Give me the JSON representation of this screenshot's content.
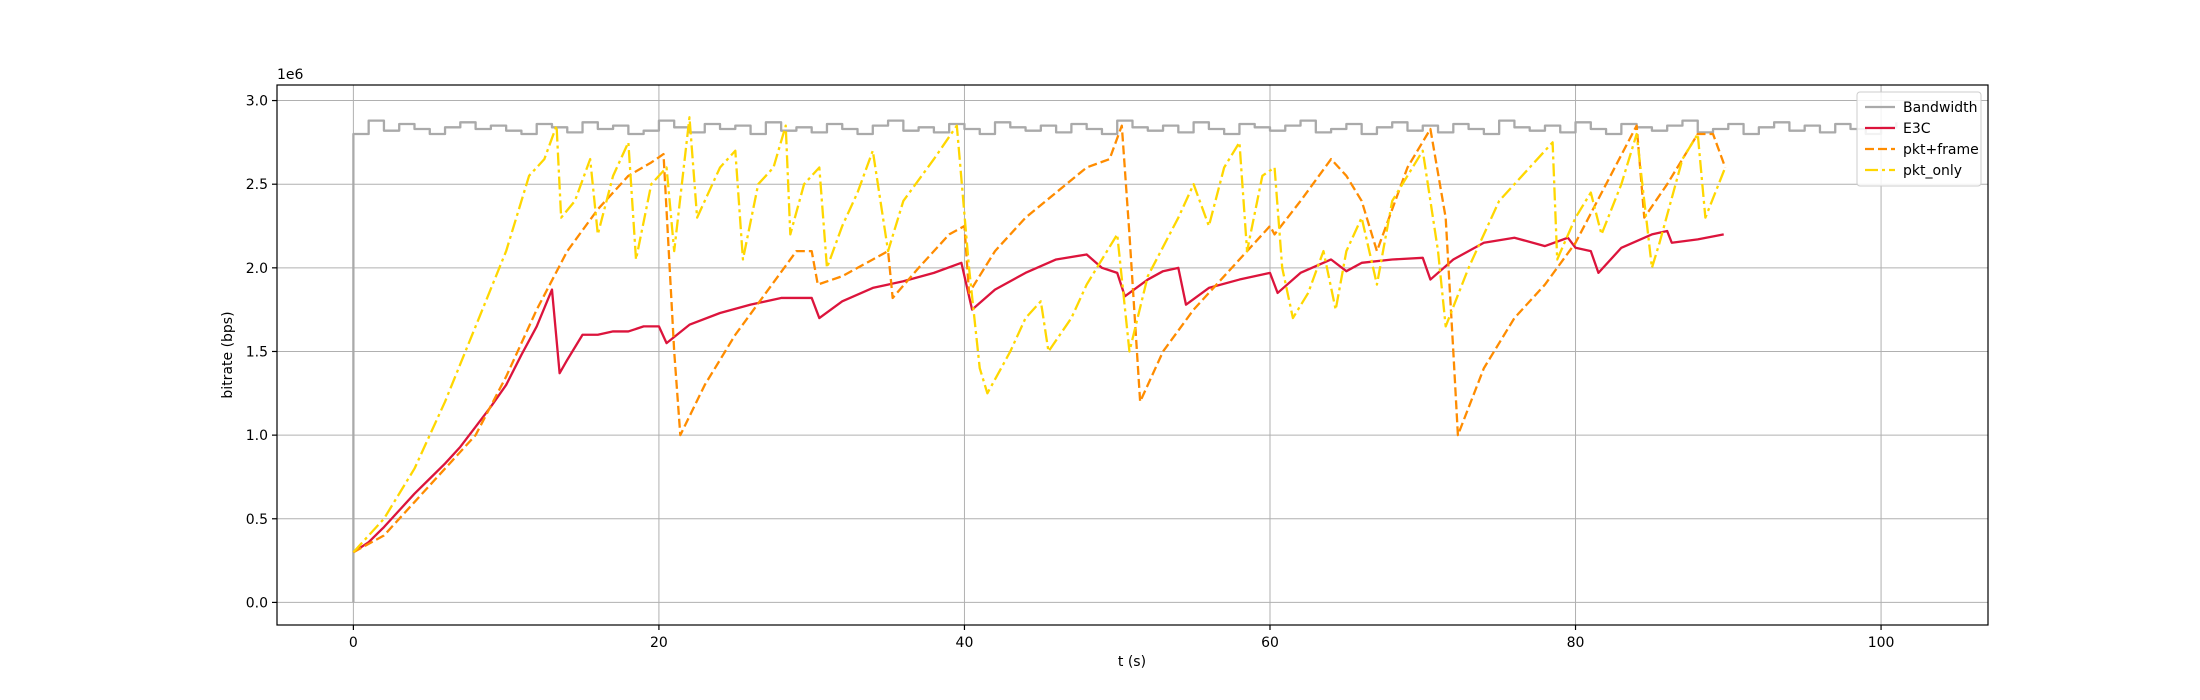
{
  "chart_data": {
    "type": "line",
    "x_label": "t (s)",
    "y_label": "bitrate (bps)",
    "y_offset_label": "1e6",
    "xlim": [
      -5,
      107
    ],
    "xticks": [
      0,
      20,
      40,
      60,
      80,
      100
    ],
    "ylim": [
      -135000,
      3093000
    ],
    "yticks": [
      {
        "value": 0,
        "label": "0.0"
      },
      {
        "value": 500000,
        "label": "0.5"
      },
      {
        "value": 1000000,
        "label": "1.0"
      },
      {
        "value": 1500000,
        "label": "1.5"
      },
      {
        "value": 2000000,
        "label": "2.0"
      },
      {
        "value": 2500000,
        "label": "2.5"
      },
      {
        "value": 3000000,
        "label": "3.0"
      }
    ],
    "grid": true,
    "legend_loc": "upper right",
    "series": [
      {
        "name": "Bandwidth",
        "color": "#aaaaaa",
        "linestyle": "solid",
        "drawstyle": "steps-post",
        "x": [
          0,
          0,
          1,
          2,
          3,
          4,
          5,
          6,
          7,
          8,
          9,
          10,
          11,
          12,
          13,
          14,
          15,
          16,
          17,
          18,
          19,
          20,
          21,
          22,
          23,
          24,
          25,
          26,
          27,
          28,
          29,
          30,
          31,
          32,
          33,
          34,
          35,
          36,
          37,
          38,
          39,
          40,
          41,
          42,
          43,
          44,
          45,
          46,
          47,
          48,
          49,
          50,
          51,
          52,
          53,
          54,
          55,
          56,
          57,
          58,
          59,
          60,
          61,
          62,
          63,
          64,
          65,
          66,
          67,
          68,
          69,
          70,
          71,
          72,
          73,
          74,
          75,
          76,
          77,
          78,
          79,
          80,
          81,
          82,
          83,
          84,
          85,
          86,
          87,
          88,
          89,
          90,
          91,
          92,
          93,
          94,
          95,
          96,
          97,
          98,
          99,
          100,
          101
        ],
        "values": [
          0,
          2800000,
          2880000,
          2820000,
          2860000,
          2830000,
          2800000,
          2840000,
          2870000,
          2830000,
          2850000,
          2820000,
          2800000,
          2860000,
          2840000,
          2810000,
          2870000,
          2830000,
          2850000,
          2800000,
          2820000,
          2880000,
          2840000,
          2810000,
          2860000,
          2830000,
          2850000,
          2800000,
          2870000,
          2820000,
          2840000,
          2810000,
          2860000,
          2830000,
          2800000,
          2850000,
          2880000,
          2820000,
          2840000,
          2810000,
          2860000,
          2830000,
          2800000,
          2870000,
          2840000,
          2820000,
          2850000,
          2810000,
          2860000,
          2830000,
          2800000,
          2880000,
          2840000,
          2820000,
          2850000,
          2810000,
          2870000,
          2830000,
          2800000,
          2860000,
          2840000,
          2820000,
          2850000,
          2880000,
          2810000,
          2830000,
          2860000,
          2800000,
          2840000,
          2870000,
          2820000,
          2850000,
          2810000,
          2860000,
          2830000,
          2800000,
          2880000,
          2840000,
          2820000,
          2850000,
          2810000,
          2870000,
          2830000,
          2800000,
          2860000,
          2840000,
          2820000,
          2850000,
          2880000,
          2810000,
          2830000,
          2860000,
          2800000,
          2840000,
          2870000,
          2820000,
          2850000,
          2810000,
          2860000,
          2830000,
          2800000,
          2840000,
          2870000
        ]
      },
      {
        "name": "E3C",
        "color": "#dc143c",
        "linestyle": "solid",
        "x": [
          0,
          1,
          2,
          3,
          4,
          5,
          6,
          7,
          8,
          9,
          10,
          11,
          12,
          13,
          13.5,
          14,
          15,
          16,
          17,
          18,
          19,
          20,
          20.5,
          22,
          24,
          26,
          28,
          30,
          30.5,
          32,
          34,
          36,
          38,
          39.8,
          40.5,
          42,
          44,
          46,
          48,
          49,
          50,
          50.5,
          52,
          53,
          54,
          54.5,
          56,
          58,
          60,
          60.5,
          62,
          64,
          65,
          66,
          68,
          70,
          70.5,
          72,
          74,
          76,
          78,
          79.5,
          80,
          81,
          81.5,
          83,
          85,
          86,
          86.3,
          88,
          89.7
        ],
        "values": [
          300000,
          360000,
          450000,
          550000,
          650000,
          740000,
          830000,
          930000,
          1050000,
          1170000,
          1300000,
          1480000,
          1650000,
          1870000,
          1370000,
          1450000,
          1600000,
          1600000,
          1620000,
          1620000,
          1650000,
          1650000,
          1550000,
          1660000,
          1730000,
          1780000,
          1820000,
          1820000,
          1700000,
          1800000,
          1880000,
          1920000,
          1970000,
          2030000,
          1750000,
          1870000,
          1970000,
          2050000,
          2080000,
          2000000,
          1970000,
          1830000,
          1930000,
          1980000,
          2000000,
          1780000,
          1880000,
          1930000,
          1970000,
          1850000,
          1970000,
          2050000,
          1980000,
          2030000,
          2050000,
          2060000,
          1930000,
          2050000,
          2150000,
          2180000,
          2130000,
          2180000,
          2120000,
          2100000,
          1970000,
          2120000,
          2200000,
          2220000,
          2150000,
          2170000,
          2200000
        ]
      },
      {
        "name": "pkt+frame",
        "color": "#ff8c00",
        "linestyle": "dashed",
        "x": [
          0,
          2,
          4,
          6,
          8,
          10,
          12,
          14,
          16,
          18,
          19.5,
          20.3,
          21,
          21.4,
          23,
          25,
          27,
          29,
          30,
          30.4,
          32,
          34,
          35,
          35.3,
          37,
          39,
          40,
          40.3,
          42,
          44,
          46,
          48,
          49.5,
          50.3,
          50.8,
          51.5,
          53,
          55,
          57,
          59,
          60,
          60.3,
          62,
          64,
          65,
          66,
          67,
          69,
          70.5,
          71.5,
          72,
          72.3,
          74,
          76,
          78,
          80,
          82,
          84,
          84.5,
          86,
          88,
          89,
          89.8
        ],
        "values": [
          300000,
          400000,
          600000,
          800000,
          1000000,
          1350000,
          1750000,
          2100000,
          2350000,
          2550000,
          2630000,
          2680000,
          1500000,
          1000000,
          1300000,
          1600000,
          1850000,
          2100000,
          2100000,
          1900000,
          1950000,
          2050000,
          2100000,
          1820000,
          2000000,
          2200000,
          2250000,
          1850000,
          2100000,
          2300000,
          2450000,
          2600000,
          2650000,
          2850000,
          2200000,
          1200000,
          1500000,
          1750000,
          1950000,
          2150000,
          2250000,
          2200000,
          2400000,
          2650000,
          2550000,
          2400000,
          2100000,
          2600000,
          2830000,
          2300000,
          1500000,
          1000000,
          1400000,
          1700000,
          1900000,
          2150000,
          2500000,
          2850000,
          2300000,
          2500000,
          2800000,
          2800000,
          2600000
        ]
      },
      {
        "name": "pkt_only",
        "color": "#ffd700",
        "linestyle": "dashdot",
        "x": [
          0,
          2,
          4,
          6,
          8,
          10,
          11.5,
          12.5,
          13.3,
          13.6,
          14.5,
          15.5,
          16,
          17,
          18,
          18.5,
          19.5,
          20.5,
          21,
          22,
          22.5,
          24,
          25,
          25.5,
          26.5,
          27.5,
          28.3,
          28.6,
          29.5,
          30.5,
          31,
          32,
          33,
          34,
          35,
          36,
          38,
          39.5,
          40.3,
          41,
          41.5,
          43,
          44,
          45,
          45.5,
          47,
          48,
          50,
          50.8,
          52,
          54,
          55,
          56,
          57,
          58,
          58.5,
          59.5,
          60.3,
          60.8,
          61.5,
          62.5,
          63.5,
          64.3,
          65,
          66,
          67,
          68,
          70,
          71,
          71.5,
          73,
          75,
          77,
          78.5,
          78.8,
          80,
          81,
          81.7,
          83,
          84,
          85,
          85.5,
          87,
          88,
          88.5,
          89.8
        ],
        "values": [
          300000,
          500000,
          800000,
          1200000,
          1650000,
          2100000,
          2550000,
          2650000,
          2850000,
          2300000,
          2400000,
          2650000,
          2200000,
          2550000,
          2750000,
          2050000,
          2500000,
          2600000,
          2100000,
          2900000,
          2300000,
          2600000,
          2700000,
          2050000,
          2500000,
          2600000,
          2850000,
          2200000,
          2500000,
          2600000,
          2000000,
          2250000,
          2450000,
          2700000,
          2100000,
          2400000,
          2650000,
          2850000,
          2000000,
          1400000,
          1250000,
          1500000,
          1700000,
          1800000,
          1500000,
          1700000,
          1900000,
          2200000,
          1500000,
          1950000,
          2300000,
          2500000,
          2250000,
          2600000,
          2750000,
          2100000,
          2550000,
          2600000,
          2000000,
          1700000,
          1850000,
          2100000,
          1750000,
          2100000,
          2300000,
          1900000,
          2400000,
          2700000,
          2100000,
          1650000,
          2000000,
          2400000,
          2600000,
          2750000,
          2050000,
          2300000,
          2450000,
          2200000,
          2500000,
          2800000,
          2000000,
          2150000,
          2650000,
          2800000,
          2300000,
          2600000
        ]
      }
    ]
  }
}
